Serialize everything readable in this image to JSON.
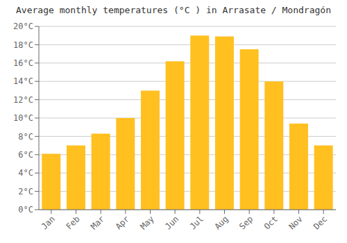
{
  "chart_data": {
    "type": "bar",
    "title": "Average monthly temperatures (°C ) in Arrasate / Mondragón",
    "categories": [
      "Jan",
      "Feb",
      "Mar",
      "Apr",
      "May",
      "Jun",
      "Jul",
      "Aug",
      "Sep",
      "Oct",
      "Nov",
      "Dec"
    ],
    "values": [
      6.1,
      7.0,
      8.3,
      10.0,
      13.0,
      16.2,
      19.0,
      18.9,
      17.5,
      14.0,
      9.4,
      7.0
    ],
    "color": "#FFC020",
    "ylim": [
      0,
      20
    ],
    "yticks": [
      {
        "value": 0,
        "label": "0°C"
      },
      {
        "value": 2,
        "label": "2°C"
      },
      {
        "value": 4,
        "label": "4°C"
      },
      {
        "value": 6,
        "label": "6°C"
      },
      {
        "value": 8,
        "label": "8°C"
      },
      {
        "value": 10,
        "label": "10°C"
      },
      {
        "value": 12,
        "label": "12°C"
      },
      {
        "value": 14,
        "label": "14°C"
      },
      {
        "value": 16,
        "label": "16°C"
      },
      {
        "value": 18,
        "label": "18°C"
      },
      {
        "value": 20,
        "label": "20°C"
      }
    ],
    "grid": true
  }
}
